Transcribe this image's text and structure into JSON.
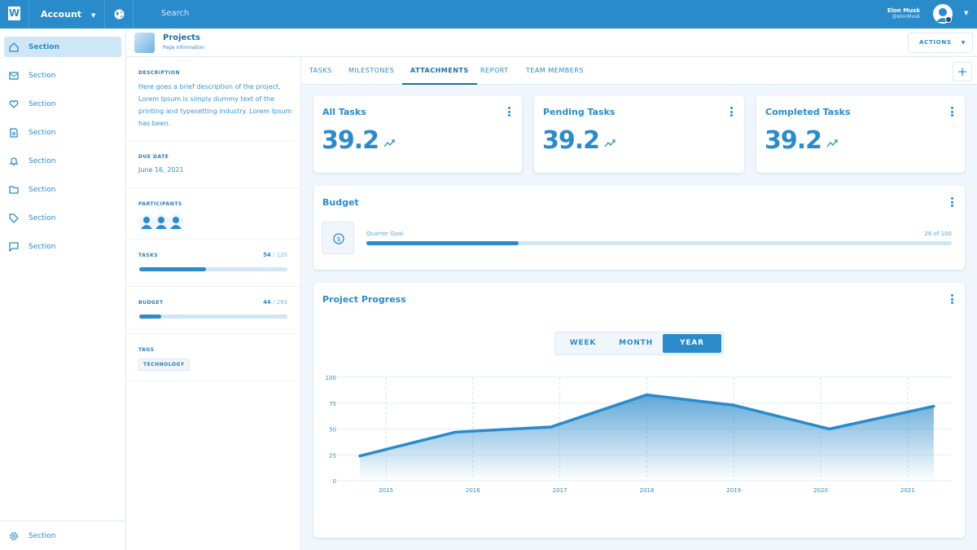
{
  "topbar": {
    "logo": "W",
    "account": "Account",
    "search_placeholder": "Search",
    "user_name": "Elon Musk",
    "user_handle": "@elonMusk"
  },
  "sidebar": {
    "items": [
      {
        "label": "Section",
        "icon": "home-icon"
      },
      {
        "label": "Section",
        "icon": "mail-icon"
      },
      {
        "label": "Section",
        "icon": "heart-icon"
      },
      {
        "label": "Section",
        "icon": "document-icon"
      },
      {
        "label": "Section",
        "icon": "bell-icon"
      },
      {
        "label": "Section",
        "icon": "folder-icon"
      },
      {
        "label": "Section",
        "icon": "tag-icon"
      },
      {
        "label": "Section",
        "icon": "chat-icon"
      }
    ],
    "footer": {
      "label": "Section",
      "icon": "gear-icon"
    }
  },
  "header": {
    "title": "Projects",
    "subtitle": "Page information",
    "actions": "ACTIONS"
  },
  "details": {
    "description_label": "DESCRIPTION",
    "description": "Here goes a brief description of the project, Lorem Ipsum is simply dummy text of the printing and typesetting industry. Lorem Ipsum has been.",
    "due_label": "DUE DATE",
    "due": "June 16, 2021",
    "participants_label": "PARTICIPANTS",
    "tasks_label": "TASKS",
    "tasks_done": "54",
    "tasks_total": "/ 120",
    "tasks_progress": 0.45,
    "budget_label": "BUDGET",
    "budget_done": "44",
    "budget_total": "/ 293",
    "budget_progress": 0.15,
    "tags_label": "TAGS",
    "tags": [
      "TECHNOLOGY"
    ]
  },
  "tabs": [
    "TASKS",
    "MILESTONES",
    "ATTACHMENTS",
    "REPORT",
    "TEAM MEMBERS"
  ],
  "active_tab": "ATTACHMENTS",
  "stats": [
    {
      "title": "All Tasks",
      "value": "39.2"
    },
    {
      "title": "Pending Tasks",
      "value": "39.2"
    },
    {
      "title": "Completed Tasks",
      "value": "39.2"
    }
  ],
  "budget": {
    "title": "Budget",
    "goal_label": "Quarter Goal",
    "goal_value": "26 of 100",
    "progress": 0.26
  },
  "progress": {
    "title": "Project Progress",
    "ranges": [
      "WEEK",
      "MONTH",
      "YEAR"
    ],
    "active_range": "YEAR"
  },
  "chart_data": {
    "type": "area",
    "x": [
      2014.7,
      2015.8,
      2016.9,
      2018.0,
      2019.0,
      2020.1,
      2021.3
    ],
    "values": [
      24,
      47,
      52,
      83,
      73,
      50,
      72
    ],
    "xticks": [
      "2015",
      "2016",
      "2017",
      "2018",
      "2019",
      "2020",
      "2021"
    ],
    "yticks": [
      "0",
      "25",
      "50",
      "75",
      "100"
    ],
    "ylim": [
      0,
      100
    ],
    "grid": true,
    "color": "#2a8bcb"
  }
}
